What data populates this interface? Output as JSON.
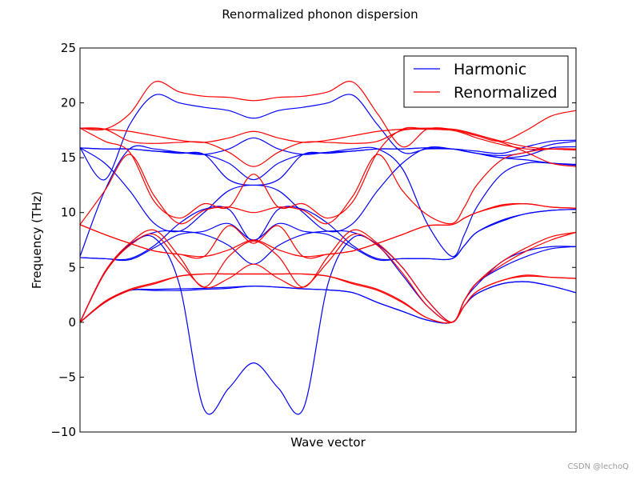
{
  "chart_data": {
    "type": "line",
    "title": "Renormalized phonon dispersion",
    "xlabel": "Wave vector",
    "ylabel": "Frequency (THz)",
    "ylim": [
      -10,
      25
    ],
    "yticks": [
      25,
      20,
      15,
      10,
      5,
      0,
      -5,
      -10
    ],
    "ytick_labels": [
      "25",
      "20",
      "15",
      "10",
      "5",
      "0",
      "−5",
      "−10"
    ],
    "xlim": [
      0,
      1
    ],
    "xticks": [],
    "grid": false,
    "legend_position": "top-right",
    "x": [
      0,
      0.05,
      0.1,
      0.15,
      0.2,
      0.25,
      0.3,
      0.35,
      0.4,
      0.45,
      0.5,
      0.55,
      0.6,
      0.65,
      0.7,
      0.75,
      0.775,
      0.8,
      0.85,
      0.9,
      0.95,
      1.0
    ],
    "series": [
      {
        "name": "Harmonic",
        "color": "#0000ff",
        "bands": [
          [
            0,
            1.8,
            2.9,
            3.0,
            3.05,
            3.1,
            3.2,
            3.3,
            3.2,
            3.05,
            2.95,
            2.7,
            1.8,
            1.0,
            0.2,
            0.0,
            1.5,
            2.6,
            3.5,
            3.7,
            3.3,
            2.7
          ],
          [
            0,
            1.8,
            2.9,
            2.9,
            2.9,
            3.0,
            3.1,
            3.3,
            3.2,
            3.05,
            2.95,
            2.7,
            1.8,
            1.0,
            0.2,
            0.0,
            1.5,
            2.6,
            3.5,
            3.7,
            3.3,
            2.7
          ],
          [
            0,
            4.5,
            7.0,
            7.7,
            3.5,
            -7.9,
            -6.0,
            -3.7,
            -6.0,
            -7.9,
            3.5,
            7.7,
            7.0,
            4.3,
            1.5,
            0.0,
            2.0,
            3.4,
            5.5,
            6.5,
            6.9,
            6.9
          ],
          [
            0,
            4.6,
            7.1,
            8.2,
            8.3,
            8.0,
            7.0,
            5.3,
            7.0,
            8.0,
            8.3,
            8.2,
            7.1,
            5.0,
            2.0,
            0.0,
            2.0,
            3.6,
            5.0,
            6.0,
            6.7,
            6.9
          ],
          [
            5.9,
            5.8,
            5.7,
            6.8,
            8.0,
            8.3,
            9.0,
            7.5,
            9.0,
            8.3,
            8.0,
            6.8,
            5.7,
            5.8,
            5.8,
            5.8,
            7.0,
            8.2,
            9.2,
            9.9,
            10.2,
            10.3
          ],
          [
            5.9,
            5.8,
            5.8,
            7.0,
            9.0,
            10.3,
            10.3,
            7.4,
            10.3,
            10.3,
            9.0,
            7.0,
            5.8,
            5.8,
            5.8,
            5.8,
            7.0,
            8.2,
            9.3,
            9.9,
            10.2,
            10.3
          ],
          [
            6.0,
            12.0,
            15.8,
            15.8,
            15.5,
            15.3,
            14.5,
            13.0,
            14.5,
            15.3,
            15.5,
            15.8,
            15.8,
            14.0,
            9.0,
            6.0,
            8.0,
            10.5,
            13.5,
            14.5,
            14.5,
            14.3
          ],
          [
            15.9,
            15.8,
            15.8,
            15.6,
            15.4,
            15.3,
            13.0,
            12.5,
            13.0,
            15.3,
            15.4,
            15.6,
            15.8,
            15.8,
            15.9,
            15.8,
            15.6,
            15.4,
            15.0,
            15.2,
            15.9,
            16.0
          ],
          [
            15.9,
            14.5,
            12.0,
            9.0,
            8.3,
            10.0,
            12.0,
            12.5,
            12.0,
            10.0,
            8.3,
            9.0,
            12.0,
            14.5,
            15.9,
            15.8,
            15.6,
            15.4,
            15.2,
            15.5,
            16.2,
            16.5
          ],
          [
            15.9,
            13.0,
            18.0,
            20.7,
            20.0,
            19.6,
            19.3,
            18.6,
            19.3,
            19.6,
            20.0,
            20.7,
            18.0,
            15.5,
            15.8,
            15.8,
            15.7,
            15.6,
            15.4,
            16.0,
            16.5,
            16.6
          ],
          [
            15.9,
            15.8,
            15.8,
            15.6,
            15.5,
            15.3,
            15.8,
            16.8,
            15.8,
            15.3,
            15.5,
            15.6,
            15.8,
            15.8,
            15.9,
            15.8,
            15.6,
            15.4,
            15.0,
            14.8,
            14.5,
            14.4
          ]
        ]
      },
      {
        "name": "Renormalized",
        "color": "#ff0000",
        "bands": [
          [
            0,
            1.8,
            2.9,
            3.5,
            4.2,
            4.4,
            4.4,
            4.4,
            4.4,
            4.4,
            4.2,
            3.5,
            2.9,
            1.8,
            0.4,
            0.0,
            1.5,
            2.8,
            3.8,
            4.2,
            4.1,
            4.0
          ],
          [
            0,
            1.9,
            3.0,
            3.6,
            4.2,
            4.4,
            4.4,
            4.4,
            4.4,
            4.4,
            4.2,
            3.6,
            3.0,
            1.9,
            0.4,
            0.0,
            1.5,
            2.8,
            3.8,
            4.3,
            4.1,
            4.0
          ],
          [
            0,
            4.5,
            7.0,
            8.0,
            5.5,
            3.2,
            4.0,
            5.3,
            4.0,
            3.2,
            5.5,
            8.0,
            7.0,
            4.5,
            1.5,
            0.0,
            2.0,
            3.6,
            5.5,
            6.8,
            7.8,
            8.2
          ],
          [
            0,
            4.6,
            7.2,
            8.4,
            6.0,
            3.2,
            6.0,
            7.4,
            6.0,
            3.2,
            6.0,
            8.4,
            7.2,
            5.0,
            2.0,
            0.0,
            2.0,
            3.6,
            5.2,
            6.5,
            7.5,
            8.2
          ],
          [
            8.9,
            8.0,
            7.2,
            6.5,
            6.2,
            6.0,
            6.6,
            7.5,
            6.6,
            6.0,
            6.2,
            6.5,
            7.2,
            8.0,
            8.8,
            8.9,
            9.5,
            10.0,
            10.6,
            10.8,
            10.5,
            10.4
          ],
          [
            8.9,
            8.0,
            7.2,
            6.5,
            6.2,
            6.0,
            8.8,
            7.2,
            8.8,
            6.0,
            6.2,
            6.5,
            7.2,
            8.0,
            8.8,
            8.9,
            9.5,
            10.0,
            10.7,
            10.8,
            10.5,
            10.4
          ],
          [
            8.9,
            12.0,
            15.3,
            11.5,
            9.0,
            10.2,
            10.5,
            10.0,
            10.5,
            10.2,
            9.0,
            11.5,
            15.3,
            12.0,
            9.8,
            9.0,
            10.5,
            12.5,
            14.8,
            15.5,
            15.8,
            15.8
          ],
          [
            17.7,
            16.5,
            15.5,
            11.0,
            9.5,
            10.8,
            10.5,
            13.5,
            10.5,
            10.8,
            9.5,
            11.0,
            15.5,
            17.6,
            17.6,
            17.5,
            17.2,
            16.8,
            16.2,
            15.8,
            15.8,
            15.8
          ],
          [
            17.7,
            17.6,
            16.5,
            16.3,
            16.4,
            16.4,
            15.5,
            14.2,
            15.5,
            16.4,
            16.4,
            16.3,
            16.5,
            17.5,
            17.6,
            17.6,
            17.3,
            17.0,
            16.5,
            17.5,
            18.8,
            19.3
          ],
          [
            17.7,
            17.6,
            19.0,
            21.9,
            21.0,
            20.6,
            20.5,
            20.2,
            20.5,
            20.6,
            21.0,
            21.9,
            19.0,
            16.0,
            17.6,
            17.6,
            17.4,
            17.1,
            16.4,
            15.5,
            14.5,
            14.2
          ],
          [
            17.7,
            17.6,
            17.4,
            17.0,
            16.6,
            16.4,
            16.8,
            17.4,
            16.8,
            16.4,
            16.6,
            17.0,
            17.4,
            17.6,
            17.7,
            17.6,
            17.4,
            17.1,
            16.5,
            16.0,
            15.8,
            15.7
          ]
        ]
      }
    ]
  },
  "watermark": "CSDN @lechoQ"
}
